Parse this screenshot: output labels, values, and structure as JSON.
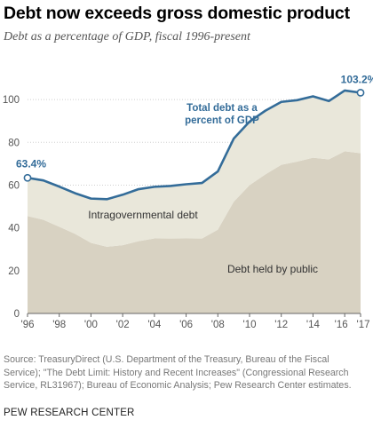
{
  "chart_data": {
    "type": "area",
    "title": "Debt now exceeds gross domestic product",
    "subtitle": "Debt as a percentage of GDP, fiscal 1996-present",
    "x": [
      1996,
      1997,
      1998,
      1999,
      2000,
      2001,
      2002,
      2003,
      2004,
      2005,
      2006,
      2007,
      2008,
      2009,
      2010,
      2011,
      2012,
      2013,
      2014,
      2015,
      2016,
      2017
    ],
    "x_tick_labels": [
      "'96",
      "'98",
      "'00",
      "'02",
      "'04",
      "'06",
      "'08",
      "'10",
      "'12",
      "'14",
      "'16",
      "'17"
    ],
    "x_tick_values": [
      1996,
      1998,
      2000,
      2002,
      2004,
      2006,
      2008,
      2010,
      2012,
      2014,
      2016,
      2017
    ],
    "y_ticks": [
      0,
      20,
      40,
      60,
      80,
      100
    ],
    "ylim": [
      0,
      110
    ],
    "series": [
      {
        "name": "Debt held by public",
        "color": "#d8d2c2",
        "values": [
          45.5,
          43.8,
          40.5,
          37.2,
          33.0,
          31.2,
          31.9,
          33.8,
          35.1,
          35.0,
          35.1,
          35.0,
          39.2,
          52.2,
          60.0,
          65.0,
          69.5,
          71.0,
          72.8,
          72.0,
          75.8,
          74.9
        ]
      },
      {
        "name": "Intragovernmental debt",
        "color": "#e9e7da",
        "values": [
          17.9,
          18.4,
          18.8,
          19.0,
          20.7,
          22.2,
          23.6,
          24.3,
          24.1,
          24.6,
          25.3,
          26.0,
          27.2,
          29.5,
          29.7,
          29.8,
          29.4,
          28.7,
          28.7,
          27.3,
          28.4,
          28.3
        ]
      },
      {
        "name": "Total debt as a percent of GDP",
        "color": "#336c99",
        "values": [
          63.4,
          62.2,
          59.3,
          56.2,
          53.7,
          53.4,
          55.5,
          58.1,
          59.2,
          59.6,
          60.4,
          61.0,
          66.4,
          81.7,
          89.7,
          94.8,
          98.9,
          99.7,
          101.5,
          99.3,
          104.2,
          103.2
        ]
      }
    ],
    "annotations": {
      "start_value": "63.4%",
      "end_value": "103.2%",
      "total_label_line1": "Total debt as a",
      "total_label_line2": "percent of GDP",
      "intragov_label": "Intragovernmental debt",
      "public_label": "Debt held by public"
    }
  },
  "source": {
    "line1": "Source: TreasuryDirect (U.S. Department of the Treasury, Bureau of the Fiscal",
    "line2": "Service); \"The Debt Limit: History and Recent Increases\" (Congressional Research",
    "line3": "Service, RL31967); Bureau of Economic Analysis; Pew Research Center estimates."
  },
  "org": "PEW RESEARCH CENTER"
}
